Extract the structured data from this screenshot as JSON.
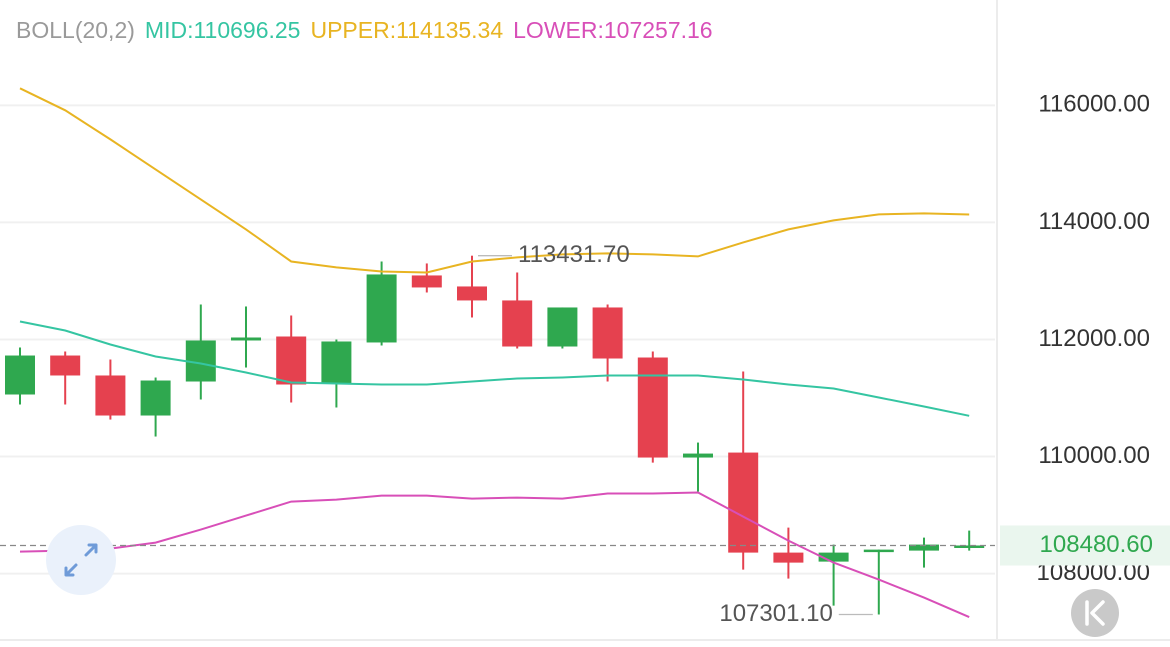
{
  "chart_data": {
    "type": "candlestick",
    "indicator": "BOLL(20,2)",
    "indicator_color": "#9a9a9a",
    "categories": [
      null,
      null,
      null,
      null,
      null,
      null,
      null,
      null,
      null,
      null,
      null,
      null,
      null,
      null,
      null,
      null,
      null,
      null,
      null,
      null,
      null,
      null
    ],
    "open": [
      111060,
      111726,
      111385,
      110701,
      111282,
      111983,
      112051,
      111248,
      111949,
      113094,
      112906,
      112667,
      111880,
      112547,
      111692,
      109983,
      110068,
      108359,
      108205,
      108393,
      108393,
      108462
    ],
    "high": [
      111863,
      111795,
      111658,
      111350,
      112598,
      112564,
      112410,
      112000,
      113333,
      113299,
      113431.7,
      113145,
      112547,
      112598,
      111795,
      110239,
      111453,
      108786,
      108496,
      108410,
      108615,
      108735
    ],
    "low": [
      110889,
      110889,
      110632,
      110342,
      110974,
      111521,
      110923,
      110838,
      111897,
      112803,
      112376,
      111846,
      111846,
      111282,
      109897,
      109402,
      108068,
      107915,
      107453,
      107301.1,
      108103,
      108393
    ],
    "close": [
      111726,
      111385,
      110701,
      111299,
      111983,
      112034,
      111231,
      111966,
      113111,
      112889,
      112667,
      111880,
      112547,
      111675,
      109983,
      110051,
      108359,
      108188,
      108359,
      108410,
      108496,
      108480.6
    ],
    "up_color": "#2fa84f",
    "down_color": "#e5414f",
    "series": [
      {
        "name": "MID:110696.25",
        "color": "#35c5a2",
        "values": [
          112308,
          112154,
          111914,
          111709,
          111590,
          111436,
          111265,
          111248,
          111231,
          111231,
          111282,
          111333,
          111350,
          111385,
          111385,
          111385,
          111316,
          111231,
          111162,
          111009,
          110855,
          110696.25
        ]
      },
      {
        "name": "UPPER:114135.34",
        "color": "#e8b422",
        "values": [
          116291,
          115915,
          115419,
          114906,
          114393,
          113880,
          113333,
          113231,
          113162,
          113145,
          113333,
          113402,
          113453,
          113470,
          113453,
          113419,
          113658,
          113880,
          114034,
          114137,
          114154,
          114135.34
        ]
      },
      {
        "name": "LOWER:107257.16",
        "color": "#d84fb8",
        "values": [
          108376,
          108393,
          108427,
          108530,
          108752,
          108991,
          109231,
          109265,
          109333,
          109333,
          109282,
          109299,
          109282,
          109368,
          109368,
          109385,
          108974,
          108564,
          108188,
          107897,
          107590,
          107257.16
        ]
      }
    ],
    "ylim": [
      106900,
      117800
    ],
    "yticks": [
      {
        "value": 108000,
        "label": "108000.00"
      },
      {
        "value": 110000,
        "label": "110000.00"
      },
      {
        "value": 112000,
        "label": "112000.00"
      },
      {
        "value": 114000,
        "label": "114000.00"
      },
      {
        "value": 116000,
        "label": "116000.00"
      }
    ],
    "grid": true,
    "current_price": {
      "value": 108480.6,
      "label": "108480.60"
    },
    "max_label": {
      "value": 113431.7,
      "label": "113431.70"
    },
    "min_label": {
      "value": 107301.1,
      "label": "107301.10"
    }
  }
}
